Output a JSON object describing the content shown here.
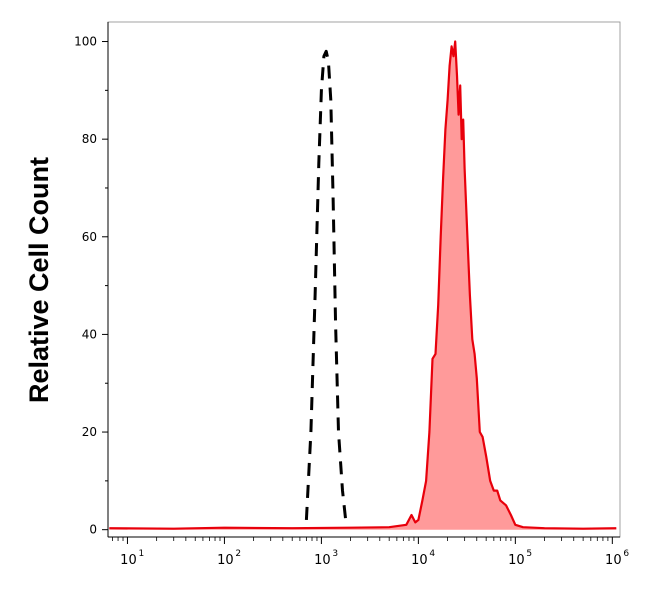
{
  "chart_data": {
    "type": "area",
    "title": "",
    "ylabel": "Relative Cell Count",
    "xlabel": "",
    "x_scale": "log",
    "xlim": [
      6.3,
      1200000
    ],
    "ylim": [
      -1.5,
      104
    ],
    "x_ticks": [
      {
        "base": "10",
        "exp": "1",
        "value": 10
      },
      {
        "base": "10",
        "exp": "2",
        "value": 100
      },
      {
        "base": "10",
        "exp": "3",
        "value": 1000
      },
      {
        "base": "10",
        "exp": "4",
        "value": 10000
      },
      {
        "base": "10",
        "exp": "5",
        "value": 100000
      },
      {
        "base": "10",
        "exp": "6",
        "value": 1000000
      }
    ],
    "y_ticks": [
      "0",
      "20",
      "40",
      "60",
      "80",
      "100"
    ],
    "grid": false,
    "legend": "none",
    "colors": {
      "stained_line": "#e8000b",
      "stained_fill": "#ff9a9a",
      "control_line": "#000000"
    },
    "series": [
      {
        "style": "dashed",
        "x": [
          700,
          780,
          860,
          940,
          1000,
          1060,
          1120,
          1180,
          1250,
          1320,
          1400,
          1500,
          1650,
          1800
        ],
        "y": [
          2,
          20,
          48,
          75,
          90,
          97,
          98,
          96,
          88,
          68,
          42,
          20,
          8,
          1
        ]
      },
      {
        "style": "filled",
        "x": [
          6.5,
          30,
          100,
          500,
          2000,
          5000,
          7500,
          8500,
          9300,
          10000,
          11000,
          12000,
          13000,
          14000,
          15000,
          16000,
          17000,
          18000,
          19000,
          20000,
          21000,
          22000,
          23000,
          24000,
          25000,
          26000,
          27000,
          28000,
          29000,
          30000,
          32000,
          34000,
          36000,
          38000,
          40000,
          43000,
          46000,
          50000,
          55000,
          60000,
          65000,
          70000,
          80000,
          90000,
          100000,
          120000,
          200000,
          500000,
          1100000
        ],
        "y": [
          0.3,
          0.2,
          0.4,
          0.3,
          0.4,
          0.5,
          1,
          3,
          1.5,
          2,
          6,
          10,
          20,
          35,
          36,
          46,
          60,
          72,
          82,
          88,
          95,
          99,
          97,
          100,
          93,
          85,
          91,
          80,
          84,
          74,
          60,
          48,
          39,
          36,
          31,
          20,
          19,
          15,
          10,
          8,
          8,
          6,
          5,
          3,
          1,
          0.5,
          0.3,
          0.2,
          0.3
        ]
      }
    ]
  }
}
